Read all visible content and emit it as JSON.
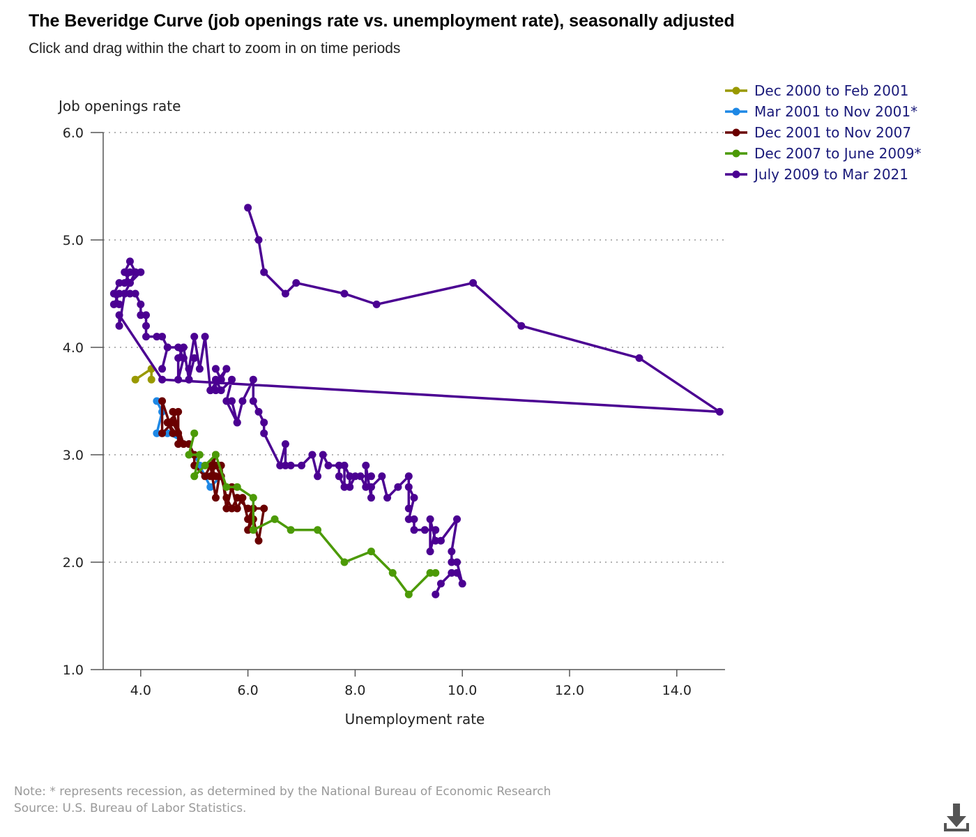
{
  "header": {
    "title": "The Beveridge Curve (job openings rate vs. unemployment rate), seasonally adjusted",
    "subtitle": "Click and drag within the chart to zoom in on time periods"
  },
  "footer": {
    "note": "Note: * represents recession, as determined by the National Bureau of Economic Research",
    "source": "Source: U.S. Bureau of Labor Statistics."
  },
  "icons": {
    "download": "download-icon"
  },
  "chart_data": {
    "type": "line",
    "xlabel": "Unemployment rate",
    "ylabel": "Job openings rate",
    "xlim": [
      3.3,
      14.9
    ],
    "ylim": [
      1.0,
      6.0
    ],
    "xticks": [
      "4.0",
      "6.0",
      "8.0",
      "10.0",
      "12.0",
      "14.0"
    ],
    "yticks": [
      "1.0",
      "2.0",
      "3.0",
      "4.0",
      "5.0",
      "6.0"
    ],
    "grid": "horizontal dotted",
    "legend_position": "top-right",
    "series": [
      {
        "name": "Dec 2000 to Feb 2001",
        "color": "#999900",
        "points": [
          [
            3.9,
            3.7
          ],
          [
            4.2,
            3.8
          ],
          [
            4.2,
            3.7
          ]
        ]
      },
      {
        "name": "Mar 2001 to Nov 2001*",
        "color": "#1e88e5",
        "points": [
          [
            4.3,
            3.5
          ],
          [
            4.4,
            3.4
          ],
          [
            4.3,
            3.2
          ],
          [
            4.5,
            3.2
          ],
          [
            4.9,
            3.1
          ],
          [
            5.0,
            3.0
          ],
          [
            5.1,
            2.9
          ],
          [
            5.3,
            2.7
          ],
          [
            5.5,
            2.8
          ]
        ]
      },
      {
        "name": "Dec 2001 to Nov 2007",
        "color": "#6a0000",
        "points": [
          [
            5.4,
            2.8
          ],
          [
            5.3,
            2.9
          ],
          [
            5.4,
            2.6
          ],
          [
            5.5,
            2.9
          ],
          [
            5.6,
            2.5
          ],
          [
            5.7,
            2.7
          ],
          [
            5.8,
            2.5
          ],
          [
            5.9,
            2.6
          ],
          [
            6.0,
            2.4
          ],
          [
            6.1,
            2.5
          ],
          [
            6.0,
            2.3
          ],
          [
            6.1,
            2.4
          ],
          [
            6.2,
            2.2
          ],
          [
            6.3,
            2.5
          ],
          [
            6.0,
            2.5
          ],
          [
            5.8,
            2.6
          ],
          [
            5.7,
            2.5
          ],
          [
            5.6,
            2.6
          ],
          [
            5.5,
            2.8
          ],
          [
            5.4,
            2.9
          ],
          [
            5.3,
            2.8
          ],
          [
            5.4,
            3.0
          ],
          [
            5.2,
            2.8
          ],
          [
            5.0,
            2.9
          ],
          [
            5.0,
            3.0
          ],
          [
            4.9,
            3.1
          ],
          [
            4.7,
            3.1
          ],
          [
            4.7,
            3.4
          ],
          [
            4.5,
            3.3
          ],
          [
            4.6,
            3.2
          ],
          [
            4.4,
            3.5
          ],
          [
            4.4,
            3.2
          ],
          [
            4.6,
            3.3
          ],
          [
            4.7,
            3.2
          ],
          [
            4.6,
            3.4
          ],
          [
            4.8,
            3.1
          ],
          [
            4.5,
            3.3
          ]
        ]
      },
      {
        "name": "Dec 2007 to June 2009*",
        "color": "#4c9a06",
        "points": [
          [
            5.0,
            3.2
          ],
          [
            4.9,
            3.0
          ],
          [
            5.1,
            3.0
          ],
          [
            5.0,
            2.8
          ],
          [
            5.2,
            2.9
          ],
          [
            5.4,
            3.0
          ],
          [
            5.6,
            2.7
          ],
          [
            5.8,
            2.7
          ],
          [
            6.1,
            2.6
          ],
          [
            6.1,
            2.3
          ],
          [
            6.5,
            2.4
          ],
          [
            6.8,
            2.3
          ],
          [
            7.3,
            2.3
          ],
          [
            7.8,
            2.0
          ],
          [
            8.3,
            2.1
          ],
          [
            8.7,
            1.9
          ],
          [
            9.0,
            1.7
          ],
          [
            9.4,
            1.9
          ],
          [
            9.5,
            1.9
          ]
        ]
      },
      {
        "name": "July 2009 to Mar 2021",
        "color": "#4b0092",
        "points": [
          [
            9.5,
            1.7
          ],
          [
            9.6,
            1.8
          ],
          [
            9.8,
            1.9
          ],
          [
            9.9,
            1.9
          ],
          [
            10.0,
            1.8
          ],
          [
            9.9,
            2.0
          ],
          [
            9.8,
            2.0
          ],
          [
            9.8,
            2.1
          ],
          [
            9.9,
            2.4
          ],
          [
            9.6,
            2.2
          ],
          [
            9.5,
            2.2
          ],
          [
            9.4,
            2.4
          ],
          [
            9.4,
            2.1
          ],
          [
            9.5,
            2.3
          ],
          [
            9.3,
            2.3
          ],
          [
            9.1,
            2.3
          ],
          [
            9.1,
            2.4
          ],
          [
            9.0,
            2.4
          ],
          [
            9.1,
            2.6
          ],
          [
            9.0,
            2.7
          ],
          [
            9.0,
            2.5
          ],
          [
            9.0,
            2.8
          ],
          [
            8.8,
            2.7
          ],
          [
            8.6,
            2.6
          ],
          [
            8.5,
            2.8
          ],
          [
            8.3,
            2.7
          ],
          [
            8.3,
            2.6
          ],
          [
            8.2,
            2.9
          ],
          [
            8.2,
            2.7
          ],
          [
            8.1,
            2.8
          ],
          [
            8.3,
            2.8
          ],
          [
            8.0,
            2.8
          ],
          [
            7.9,
            2.7
          ],
          [
            7.9,
            2.8
          ],
          [
            7.8,
            2.9
          ],
          [
            7.8,
            2.7
          ],
          [
            7.7,
            2.8
          ],
          [
            7.7,
            2.9
          ],
          [
            7.5,
            2.9
          ],
          [
            7.4,
            3.0
          ],
          [
            7.3,
            2.8
          ],
          [
            7.2,
            3.0
          ],
          [
            7.0,
            2.9
          ],
          [
            6.8,
            2.9
          ],
          [
            6.7,
            2.9
          ],
          [
            6.7,
            3.1
          ],
          [
            6.6,
            2.9
          ],
          [
            6.3,
            3.2
          ],
          [
            6.3,
            3.3
          ],
          [
            6.2,
            3.4
          ],
          [
            6.1,
            3.5
          ],
          [
            6.1,
            3.7
          ],
          [
            5.9,
            3.5
          ],
          [
            5.8,
            3.3
          ],
          [
            5.7,
            3.5
          ],
          [
            5.8,
            3.3
          ],
          [
            5.6,
            3.5
          ],
          [
            5.7,
            3.7
          ],
          [
            5.5,
            3.6
          ],
          [
            5.4,
            3.7
          ],
          [
            5.4,
            3.6
          ],
          [
            5.3,
            3.6
          ],
          [
            5.5,
            3.7
          ],
          [
            5.4,
            3.8
          ],
          [
            5.5,
            3.7
          ],
          [
            5.6,
            3.8
          ],
          [
            5.3,
            3.6
          ],
          [
            5.2,
            4.1
          ],
          [
            5.1,
            3.8
          ],
          [
            5.0,
            4.1
          ],
          [
            4.9,
            3.8
          ],
          [
            4.9,
            3.7
          ],
          [
            5.0,
            3.9
          ],
          [
            4.9,
            3.7
          ],
          [
            4.8,
            4.0
          ],
          [
            4.7,
            3.9
          ],
          [
            4.7,
            3.7
          ],
          [
            4.8,
            3.9
          ],
          [
            4.7,
            4.0
          ],
          [
            4.5,
            4.0
          ],
          [
            4.4,
            3.8
          ],
          [
            4.5,
            4.0
          ],
          [
            4.4,
            4.1
          ],
          [
            4.3,
            4.1
          ],
          [
            4.1,
            4.1
          ],
          [
            4.1,
            4.2
          ],
          [
            4.1,
            4.3
          ],
          [
            4.0,
            4.3
          ],
          [
            4.0,
            4.4
          ],
          [
            3.9,
            4.5
          ],
          [
            3.8,
            4.5
          ],
          [
            3.7,
            4.5
          ],
          [
            3.6,
            4.5
          ],
          [
            3.5,
            4.4
          ],
          [
            3.6,
            4.4
          ],
          [
            3.5,
            4.5
          ],
          [
            3.6,
            4.6
          ],
          [
            3.7,
            4.6
          ],
          [
            3.8,
            4.7
          ],
          [
            3.9,
            4.7
          ],
          [
            3.8,
            4.6
          ],
          [
            3.7,
            4.7
          ],
          [
            3.8,
            4.8
          ],
          [
            3.9,
            4.7
          ],
          [
            4.0,
            4.7
          ],
          [
            3.8,
            4.6
          ],
          [
            3.7,
            4.5
          ],
          [
            3.6,
            4.2
          ],
          [
            3.6,
            4.3
          ],
          [
            4.4,
            3.7
          ],
          [
            14.8,
            3.4
          ],
          [
            13.3,
            3.9
          ],
          [
            11.1,
            4.2
          ],
          [
            10.2,
            4.6
          ],
          [
            8.4,
            4.4
          ],
          [
            7.8,
            4.5
          ],
          [
            6.9,
            4.6
          ],
          [
            6.7,
            4.5
          ],
          [
            6.3,
            4.7
          ],
          [
            6.2,
            5.0
          ],
          [
            6.0,
            5.3
          ]
        ]
      }
    ]
  }
}
